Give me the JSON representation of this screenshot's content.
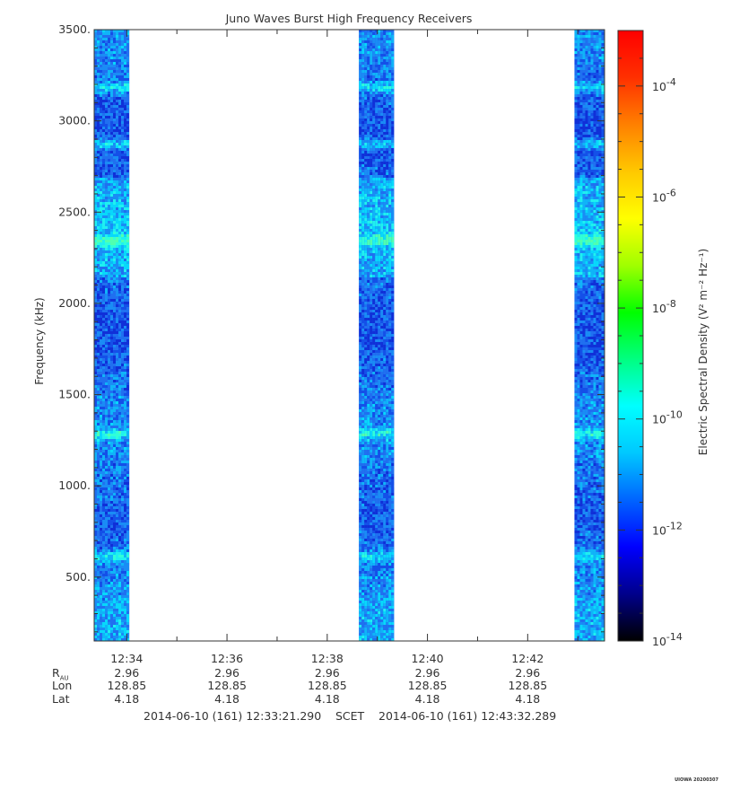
{
  "chart_data": {
    "type": "heatmap",
    "title": "Juno Waves Burst High Frequency Receivers",
    "ylabel": "Frequency (kHz)",
    "ylim": [
      150,
      3500
    ],
    "yticks": [
      {
        "value": 500,
        "label": "500."
      },
      {
        "value": 1000,
        "label": "1000."
      },
      {
        "value": 1500,
        "label": "1500."
      },
      {
        "value": 2000,
        "label": "2000."
      },
      {
        "value": 2500,
        "label": "2500."
      },
      {
        "value": 3000,
        "label": "3000."
      },
      {
        "value": 3500,
        "label": "3500."
      }
    ],
    "xlim": [
      "12:33:21",
      "12:43:32"
    ],
    "xticks": [
      "12:34",
      "12:36",
      "12:38",
      "12:40",
      "12:42"
    ],
    "bursts": [
      {
        "start": "12:33:21",
        "end": "12:34:03"
      },
      {
        "start": "12:38:38",
        "end": "12:39:20"
      },
      {
        "start": "12:42:56",
        "end": "12:43:38"
      }
    ],
    "colorbar": {
      "label": "Electric Spectral Density (V² m⁻² Hz⁻¹)",
      "log_range": [
        -14,
        -3
      ],
      "ticks": [
        {
          "exp": -14,
          "label": "10-14"
        },
        {
          "exp": -12,
          "label": "10-12"
        },
        {
          "exp": -10,
          "label": "10-10"
        },
        {
          "exp": -8,
          "label": "10-8"
        },
        {
          "exp": -6,
          "label": "10-6"
        },
        {
          "exp": -4,
          "label": "10-4"
        }
      ],
      "colors": [
        "#000000",
        "#00008b",
        "#0000ff",
        "#0064ff",
        "#00c8ff",
        "#00ffff",
        "#00ff80",
        "#00ff00",
        "#a0ff00",
        "#ffff00",
        "#ffc800",
        "#ff8000",
        "#ff3000",
        "#ff0000"
      ]
    },
    "bright_bands_khz": [
      620,
      1290,
      2350,
      2880,
      3190
    ]
  },
  "ephemeris": {
    "labels": [
      "R",
      "Lon",
      "Lat"
    ],
    "r_sub": "AU",
    "columns": [
      {
        "r": "2.96",
        "lon": "128.85",
        "lat": "4.18"
      },
      {
        "r": "2.96",
        "lon": "128.85",
        "lat": "4.18"
      },
      {
        "r": "2.96",
        "lon": "128.85",
        "lat": "4.18"
      },
      {
        "r": "2.96",
        "lon": "128.85",
        "lat": "4.18"
      },
      {
        "r": "2.96",
        "lon": "128.85",
        "lat": "4.18"
      }
    ]
  },
  "footer": {
    "start": "2014-06-10 (161) 12:33:21.290",
    "mid": "SCET",
    "end": "2014-06-10 (161) 12:43:32.289"
  },
  "stamp": "UIOWA 20200307"
}
